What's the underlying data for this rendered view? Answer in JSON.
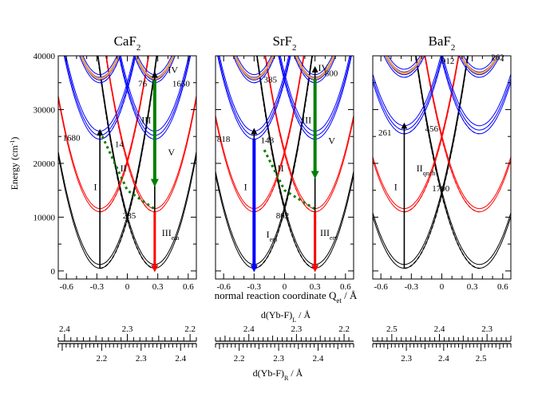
{
  "figure": {
    "y_axis_label": "Energy (cm",
    "y_axis_label_sup": "-1",
    "y_axis_label_end": ")",
    "x_axis_label": "normal reaction coordinate Q",
    "x_axis_label_sub": "et",
    "x_axis_label_end": " / Å",
    "top_scale_label": "d(Yb-F)",
    "top_scale_label_sub": "L",
    "top_scale_label_end": " / Å",
    "bottom_scale_label": "d(Yb-F)",
    "bottom_scale_label_sub": "R",
    "bottom_scale_label_end": " / Å",
    "y_ticks": [
      {
        "value": 0,
        "label": "0"
      },
      {
        "value": 10000,
        "label": "10000"
      },
      {
        "value": 20000,
        "label": "20000"
      },
      {
        "value": 30000,
        "label": "30000"
      },
      {
        "value": 40000,
        "label": "40000"
      }
    ],
    "x_ticks": [
      {
        "value": -0.6,
        "label": "-0.6"
      },
      {
        "value": -0.3,
        "label": "-0.3"
      },
      {
        "value": 0,
        "label": "0"
      },
      {
        "value": 0.3,
        "label": "0.3"
      },
      {
        "value": 0.6,
        "label": "0.6"
      }
    ]
  },
  "chart_data": [
    {
      "type": "line",
      "title": "CaF",
      "title_sub": "2",
      "xlim": [
        -0.68,
        0.68
      ],
      "ylim": [
        -1500,
        40000
      ],
      "well_x": 0.27,
      "ground_min": 500,
      "curvature": 125000,
      "red_min": 11000,
      "blue_min": 24500,
      "numbers": [
        {
          "text": "76",
          "x": 0.15,
          "y": 34300
        },
        {
          "text": "1650",
          "x": 0.53,
          "y": 34300
        },
        {
          "text": "1680",
          "x": -0.55,
          "y": 24200
        },
        {
          "text": "14",
          "x": -0.08,
          "y": 23000
        },
        {
          "text": "285",
          "x": 0.02,
          "y": 9800
        }
      ],
      "roman": [
        {
          "text": "IV",
          "x": 0.4,
          "y": 36800
        },
        {
          "text": "III",
          "x": 0.14,
          "y": 27500
        },
        {
          "text": "V",
          "x": 0.4,
          "y": 21500
        },
        {
          "text": "II",
          "x": -0.07,
          "y": 18500
        },
        {
          "text": "I",
          "x": -0.33,
          "y": 15000
        },
        {
          "text": "III",
          "x": 0.34,
          "y": 6500,
          "sub": "em"
        }
      ],
      "arrows": [
        {
          "color": "#000000",
          "x": -0.27,
          "y1": 500,
          "y2": 25800,
          "width": 1.6
        },
        {
          "color": "#ff0000",
          "x": 0.27,
          "y1": 11000,
          "y2": 500,
          "width": 3
        },
        {
          "color": "#000000",
          "x": 0.27,
          "y1": 11000,
          "y2": 36500,
          "width": 1.6
        },
        {
          "color": "#008000",
          "x": 0.27,
          "y1": 35500,
          "y2": 16500,
          "width": 4
        }
      ],
      "green_path": [
        [
          -0.27,
          26000
        ],
        [
          0.0,
          15000
        ],
        [
          0.27,
          11500
        ]
      ]
    },
    {
      "type": "line",
      "title": "SrF",
      "title_sub": "2",
      "xlim": [
        -0.68,
        0.68
      ],
      "ylim": [
        -1500,
        40000
      ],
      "well_x": 0.3,
      "ground_min": 500,
      "curvature": 120000,
      "red_min": 11000,
      "blue_min": 24500,
      "numbers": [
        {
          "text": "385",
          "x": -0.14,
          "y": 35000
        },
        {
          "text": "800",
          "x": 0.46,
          "y": 36200
        },
        {
          "text": "818",
          "x": -0.6,
          "y": 24000
        },
        {
          "text": "148",
          "x": -0.17,
          "y": 23800
        },
        {
          "text": "862",
          "x": -0.02,
          "y": 9800
        }
      ],
      "roman": [
        {
          "text": "IV",
          "x": 0.33,
          "y": 37200
        },
        {
          "text": "III",
          "x": 0.17,
          "y": 27500
        },
        {
          "text": "V",
          "x": 0.43,
          "y": 23600
        },
        {
          "text": "II",
          "x": -0.07,
          "y": 18500
        },
        {
          "text": "I",
          "x": -0.4,
          "y": 15000
        },
        {
          "text": "I",
          "x": -0.18,
          "y": 6200,
          "sub": "em"
        },
        {
          "text": "III",
          "x": 0.35,
          "y": 6500,
          "sub": "em"
        }
      ],
      "arrows": [
        {
          "color": "#000000",
          "x": -0.3,
          "y1": 500,
          "y2": 26000,
          "width": 1.6
        },
        {
          "color": "#0000ff",
          "x": -0.3,
          "y1": 24500,
          "y2": 500,
          "width": 4
        },
        {
          "color": "#ff0000",
          "x": 0.3,
          "y1": 11000,
          "y2": 500,
          "width": 3
        },
        {
          "color": "#000000",
          "x": 0.3,
          "y1": 11000,
          "y2": 37500,
          "width": 1.6
        },
        {
          "color": "#008000",
          "x": 0.3,
          "y1": 35700,
          "y2": 18000,
          "width": 4
        }
      ],
      "green_path": [
        [
          -0.2,
          22500
        ],
        [
          0.0,
          15000
        ],
        [
          0.3,
          11500
        ]
      ]
    },
    {
      "type": "line",
      "title": "BaF",
      "title_sub": "2",
      "xlim": [
        -0.68,
        0.68
      ],
      "ylim": [
        -1500,
        40000
      ],
      "well_x": 0.37,
      "ground_min": 500,
      "curvature": 100000,
      "red_min": 11000,
      "blue_min": 25500,
      "numbers": [
        {
          "text": "912",
          "x": 0.06,
          "y": 38500
        },
        {
          "text": "262",
          "x": 0.55,
          "y": 39200
        },
        {
          "text": "261",
          "x": -0.56,
          "y": 25200
        },
        {
          "text": "456",
          "x": -0.1,
          "y": 25900
        },
        {
          "text": "1700",
          "x": -0.01,
          "y": 14800
        }
      ],
      "roman": [
        {
          "text": "II",
          "x": -0.25,
          "y": 18500,
          "sub": "qnch"
        },
        {
          "text": "I",
          "x": -0.47,
          "y": 15000
        }
      ],
      "arrows": [
        {
          "color": "#000000",
          "x": -0.37,
          "y1": 500,
          "y2": 27000,
          "width": 1.6
        }
      ],
      "green_path": []
    }
  ],
  "scales": [
    {
      "top_range": [
        2.41,
        2.19
      ],
      "top_labels": [
        {
          "v": 2.4,
          "t": "2.4"
        },
        {
          "v": 2.3,
          "t": "2.3"
        },
        {
          "v": 2.2,
          "t": "2.2"
        }
      ],
      "bottom_range": [
        2.09,
        2.44
      ],
      "bottom_labels": [
        {
          "v": 2.2,
          "t": "2.2"
        },
        {
          "v": 2.3,
          "t": "2.3"
        },
        {
          "v": 2.4,
          "t": "2.4"
        }
      ]
    },
    {
      "top_range": [
        2.47,
        2.18
      ],
      "top_labels": [
        {
          "v": 2.4,
          "t": "2.4"
        },
        {
          "v": 2.3,
          "t": "2.3"
        },
        {
          "v": 2.2,
          "t": "2.2"
        }
      ],
      "bottom_range": [
        2.14,
        2.49
      ],
      "bottom_labels": [
        {
          "v": 2.2,
          "t": "2.2"
        },
        {
          "v": 2.3,
          "t": "2.3"
        },
        {
          "v": 2.4,
          "t": "2.4"
        }
      ]
    },
    {
      "top_range": [
        2.54,
        2.25
      ],
      "top_labels": [
        {
          "v": 2.5,
          "t": "2.5"
        },
        {
          "v": 2.4,
          "t": "2.4"
        },
        {
          "v": 2.3,
          "t": "2.3"
        }
      ],
      "bottom_range": [
        2.21,
        2.58
      ],
      "bottom_labels": [
        {
          "v": 2.3,
          "t": "2.3"
        },
        {
          "v": 2.4,
          "t": "2.4"
        },
        {
          "v": 2.5,
          "t": "2.5"
        }
      ]
    }
  ]
}
